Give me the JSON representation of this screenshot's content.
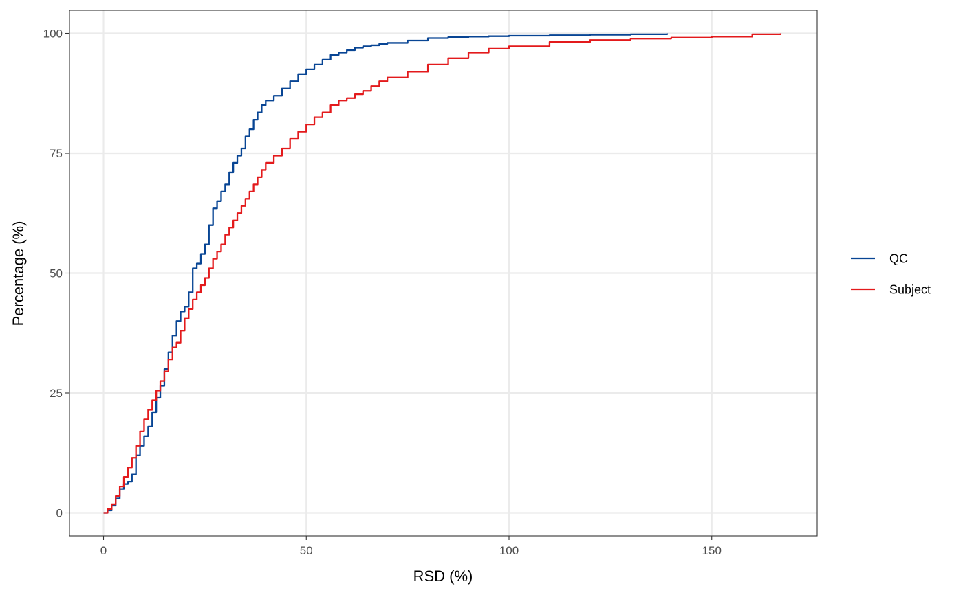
{
  "chart_data": {
    "type": "line",
    "xlabel": "RSD (%)",
    "ylabel": "Percentage (%)",
    "xlim": [
      -8.4,
      176
    ],
    "ylim": [
      -4.8,
      104.8
    ],
    "x_ticks": [
      0,
      50,
      100,
      150
    ],
    "y_ticks": [
      0,
      25,
      50,
      75,
      100
    ],
    "grid": true,
    "legend_position": "right",
    "series": [
      {
        "name": "QC",
        "color": "#084594",
        "x": [
          0,
          1,
          2,
          3,
          4,
          5,
          6,
          7,
          8,
          9,
          10,
          11,
          12,
          13,
          14,
          15,
          16,
          17,
          18,
          19,
          20,
          21,
          22,
          23,
          24,
          25,
          26,
          27,
          28,
          29,
          30,
          31,
          32,
          33,
          34,
          35,
          36,
          37,
          38,
          39,
          40,
          42,
          44,
          46,
          48,
          50,
          52,
          54,
          56,
          58,
          60,
          62,
          64,
          66,
          68,
          70,
          75,
          80,
          85,
          90,
          95,
          100,
          110,
          120,
          130,
          139
        ],
        "y": [
          0,
          0.5,
          1.5,
          3,
          5,
          6,
          6.5,
          8,
          12,
          14,
          16,
          18,
          21,
          24,
          26.5,
          30,
          33.5,
          37,
          40,
          42,
          43,
          46,
          51,
          52,
          54,
          56,
          60,
          63.5,
          65,
          67,
          68.5,
          71,
          73,
          74.5,
          76,
          78.5,
          80,
          82,
          83.5,
          85,
          86,
          87,
          88.5,
          90,
          91.5,
          92.5,
          93.5,
          94.5,
          95.5,
          96,
          96.5,
          97,
          97.3,
          97.5,
          97.8,
          98,
          98.5,
          99,
          99.2,
          99.3,
          99.4,
          99.5,
          99.6,
          99.7,
          99.8,
          100
        ]
      },
      {
        "name": "Subject",
        "color": "#e31a1c",
        "x": [
          0,
          1,
          2,
          3,
          4,
          5,
          6,
          7,
          8,
          9,
          10,
          11,
          12,
          13,
          14,
          15,
          16,
          17,
          18,
          19,
          20,
          21,
          22,
          23,
          24,
          25,
          26,
          27,
          28,
          29,
          30,
          31,
          32,
          33,
          34,
          35,
          36,
          37,
          38,
          39,
          40,
          42,
          44,
          46,
          48,
          50,
          52,
          54,
          56,
          58,
          60,
          62,
          64,
          66,
          68,
          70,
          75,
          80,
          85,
          90,
          95,
          100,
          110,
          120,
          130,
          140,
          150,
          160,
          167
        ],
        "y": [
          0,
          0.8,
          1.8,
          3.5,
          5.5,
          7.5,
          9.5,
          11.5,
          14,
          17,
          19.5,
          21.5,
          23.5,
          25.5,
          27.5,
          29.5,
          32,
          34.5,
          35.5,
          38,
          40.5,
          42.5,
          44.5,
          46,
          47.5,
          49,
          51,
          53,
          54.5,
          56,
          58,
          59.5,
          61,
          62.5,
          64,
          65.5,
          67,
          68.5,
          70,
          71.5,
          73,
          74.5,
          76,
          78,
          79.5,
          81,
          82.5,
          83.5,
          85,
          86,
          86.5,
          87.3,
          88,
          89,
          90,
          90.8,
          92,
          93.5,
          94.8,
          96,
          96.8,
          97.3,
          98.2,
          98.6,
          98.9,
          99.1,
          99.3,
          99.8,
          100
        ]
      }
    ]
  }
}
